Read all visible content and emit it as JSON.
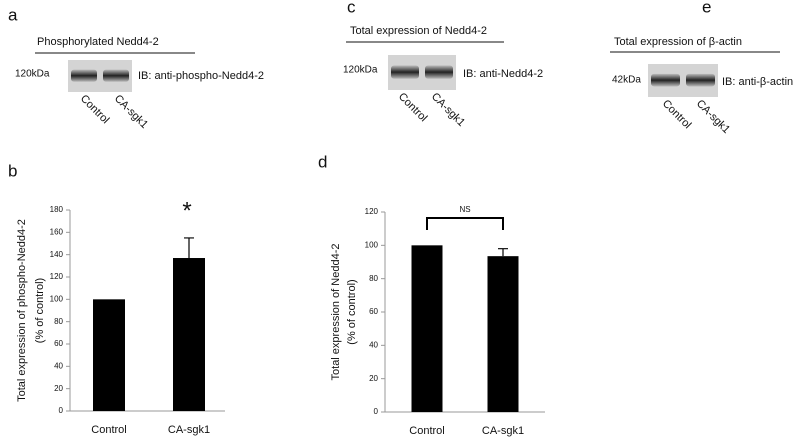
{
  "panels": [
    {
      "label": "a",
      "title": "Phosphorylated Nedd4-2",
      "marker": "120kDa",
      "antibody": "IB: anti-phospho-Nedd4-2",
      "lanes": [
        "Control",
        "CA-sgk1"
      ]
    },
    {
      "label": "c",
      "title": "Total expression of Nedd4-2",
      "marker": "120kDa",
      "antibody": "IB: anti-Nedd4-2",
      "lanes": [
        "Control",
        "CA-sgk1"
      ]
    },
    {
      "label": "e",
      "title": "Total expression of β-actin",
      "marker": "42kDa",
      "antibody": "IB: anti-β-actin",
      "lanes": [
        "Control",
        "CA-sgk1"
      ]
    }
  ],
  "chart_data": [
    {
      "type": "bar",
      "label": "b",
      "y_label": [
        "Total expression of phospho-Nedd4-2",
        "(% of control)"
      ],
      "categories": [
        "Control",
        "CA-sgk1"
      ],
      "values": [
        100,
        137
      ],
      "errors": [
        null,
        18
      ],
      "color": "#000000",
      "ylim": [
        0,
        180
      ],
      "yticks": [
        0,
        20,
        40,
        60,
        80,
        100,
        120,
        140,
        160,
        180
      ],
      "annotation": "*"
    },
    {
      "type": "bar",
      "label": "d",
      "y_label": [
        "Total expression of Nedd4-2",
        "(% of control)"
      ],
      "categories": [
        "Control",
        "CA-sgk1"
      ],
      "values": [
        100,
        93.5
      ],
      "errors": [
        null,
        4.5
      ],
      "color": "#000000",
      "ylim": [
        0,
        120
      ],
      "yticks": [
        0,
        20,
        40,
        60,
        80,
        100,
        120
      ],
      "annotation": "NS"
    }
  ]
}
